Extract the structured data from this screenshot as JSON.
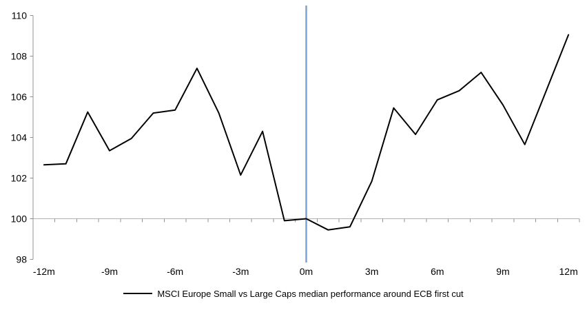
{
  "chart_data": {
    "type": "line",
    "title": "",
    "x_months": [
      -12,
      -11,
      -10,
      -9,
      -8,
      -7,
      -6,
      -5,
      -4,
      -3,
      -2,
      -1,
      0,
      1,
      2,
      3,
      4,
      5,
      6,
      7,
      8,
      9,
      10,
      11,
      12
    ],
    "series": [
      {
        "name": "MSCI Europe Small vs Large Caps median performance around ECB first cut",
        "values": [
          102.65,
          102.7,
          105.25,
          103.35,
          103.95,
          105.2,
          105.35,
          107.4,
          105.2,
          102.15,
          104.3,
          99.9,
          100.0,
          99.45,
          99.6,
          101.85,
          105.45,
          104.15,
          105.85,
          106.3,
          107.2,
          105.6,
          103.65,
          106.35,
          109.05
        ]
      }
    ],
    "x_axis": {
      "tick_labels": [
        "-12m",
        "-9m",
        "-6m",
        "-3m",
        "0m",
        "3m",
        "6m",
        "9m",
        "12m"
      ],
      "tick_positions_months": [
        -12,
        -9,
        -6,
        -3,
        0,
        3,
        6,
        9,
        12
      ],
      "minor_tick_every_months": 1
    },
    "y_axis": {
      "tick_labels": [
        "98",
        "100",
        "102",
        "104",
        "106",
        "108",
        "110"
      ],
      "ticks": [
        98,
        100,
        102,
        104,
        106,
        108,
        110
      ],
      "range": [
        98,
        110
      ]
    },
    "reference_lines": {
      "horizontal_gridline_y": 100,
      "vertical_event_line_x_months": 0
    },
    "legend": {
      "position": "bottom-center",
      "label": "MSCI Europe Small vs Large Caps median performance around ECB first cut"
    },
    "colors": {
      "series_line": "#000000",
      "event_line": "#7BA4D4",
      "gridline": "#B3B3B3",
      "axis": "#909090",
      "text": "#000000",
      "background": "#FFFFFF"
    }
  }
}
